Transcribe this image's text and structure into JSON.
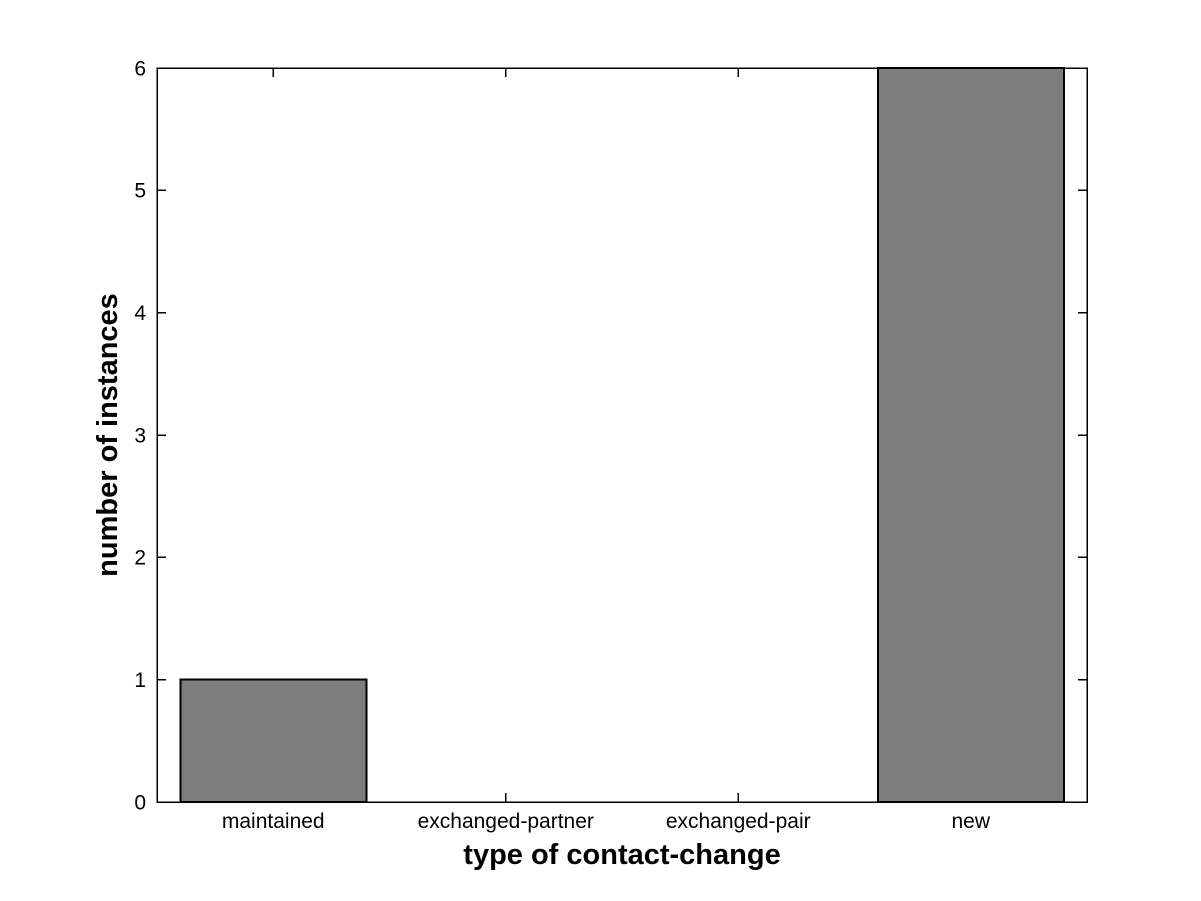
{
  "figure": {
    "background_color": "#ffffff",
    "plot_background_color": "#ffffff",
    "axis_color": "#000000",
    "text_color": "#000000"
  },
  "chart_data": {
    "type": "bar",
    "title": "",
    "categories": [
      "maintained",
      "exchanged-partner",
      "exchanged-pair",
      "new"
    ],
    "values": [
      1,
      0,
      0,
      6
    ],
    "xlabel": "type of contact-change",
    "ylabel": "number of instances",
    "xlim": [
      0.5,
      4.5
    ],
    "ylim": [
      0,
      6
    ],
    "ytick_values": [
      0,
      1,
      2,
      3,
      4,
      5,
      6
    ],
    "ytick_labels": [
      "0",
      "1",
      "2",
      "3",
      "4",
      "5",
      "6"
    ],
    "bar_width": 0.8,
    "bar_color": "#7d7d7d",
    "bar_edge_color": "#000000",
    "grid": false,
    "legend": null,
    "box": true,
    "tick_direction": "in"
  }
}
